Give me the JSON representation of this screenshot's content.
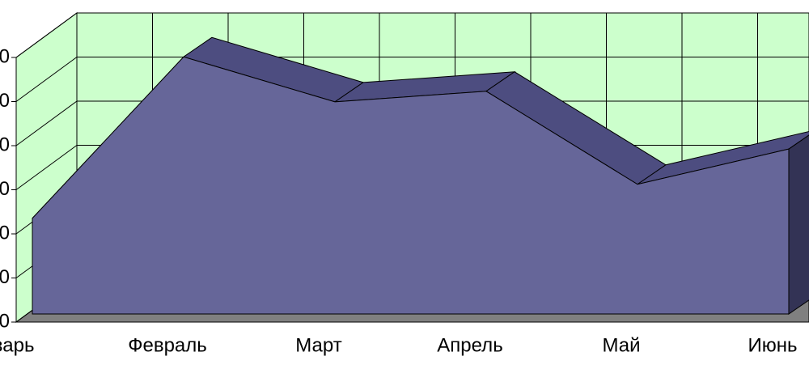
{
  "chart_data": {
    "type": "area3d",
    "categories": [
      "нварь",
      "Февраль",
      "Март",
      "Апрель",
      "Май",
      "Июнь"
    ],
    "series": [
      {
        "color": "#666699",
        "values": [
          2.17,
          5.83,
          4.81,
          5.05,
          2.94,
          3.74
        ]
      }
    ],
    "ylim": [
      0,
      6
    ],
    "yticks": [
      0,
      {
        "value": 1,
        "label": "0"
      },
      {
        "value": 2,
        "label": "0"
      },
      {
        "value": 3,
        "label": "0"
      },
      {
        "value": 4,
        "label": "0"
      },
      {
        "value": 5,
        "label": "0"
      },
      {
        "value": 6,
        "label": "0"
      }
    ],
    "grid": true,
    "wall_color": "#ccffcc",
    "floor_color": "#808080"
  }
}
